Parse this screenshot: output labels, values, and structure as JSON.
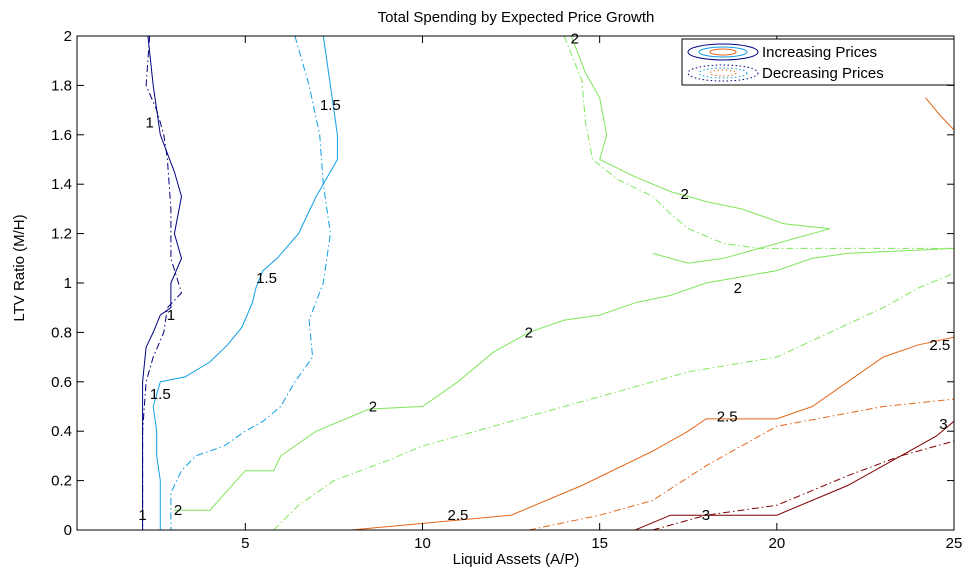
{
  "chart_data": {
    "type": "contour",
    "title": "Total Spending  by Expected Price Growth",
    "xlabel": "Liquid Assets (A/P)",
    "ylabel": "LTV Ratio (M/H)",
    "xlim": [
      0.25,
      25
    ],
    "ylim": [
      0,
      2
    ],
    "xticks": [
      5,
      10,
      15,
      20,
      25
    ],
    "yticks": [
      0,
      0.2,
      0.4,
      0.6,
      0.8,
      1,
      1.2,
      1.4,
      1.6,
      1.8,
      2
    ],
    "ytick_labels": [
      "0",
      "0.2",
      "0.4",
      "0.6",
      "0.8",
      "1",
      "1.2",
      "1.4",
      "1.6",
      "1.8",
      "2"
    ],
    "grid": false,
    "legend": {
      "placement": "top-right",
      "entries": [
        {
          "label": "Increasing Prices",
          "style": "solid"
        },
        {
          "label": "Decreasing Prices",
          "style": "dotted"
        }
      ]
    },
    "colors": {
      "1": "#00007f",
      "1.5": "#0f9ee6",
      "2": "#7fe65a",
      "2.5": "#e6661a",
      "3": "#7f0000"
    },
    "series": [
      {
        "level": "1",
        "style": "solid",
        "points": [
          [
            2.25,
            2
          ],
          [
            2.4,
            1.8
          ],
          [
            2.6,
            1.6
          ],
          [
            3.0,
            1.45
          ],
          [
            3.2,
            1.35
          ],
          [
            3.0,
            1.2
          ],
          [
            3.2,
            1.1
          ],
          [
            2.9,
            1.0
          ],
          [
            2.9,
            0.9
          ],
          [
            2.6,
            0.87
          ],
          [
            2.4,
            0.8
          ],
          [
            2.2,
            0.74
          ],
          [
            2.1,
            0.6
          ],
          [
            2.1,
            0.4
          ],
          [
            2.1,
            0.2
          ],
          [
            2.1,
            0
          ]
        ]
      },
      {
        "level": "1",
        "style": "dashdot",
        "points": [
          [
            2.3,
            2
          ],
          [
            2.2,
            1.8
          ],
          [
            2.5,
            1.7
          ],
          [
            2.7,
            1.6
          ],
          [
            2.8,
            1.5
          ],
          [
            2.9,
            1.3
          ],
          [
            2.9,
            1.1
          ],
          [
            3.2,
            0.96
          ],
          [
            2.8,
            0.9
          ],
          [
            2.7,
            0.8
          ],
          [
            2.4,
            0.7
          ],
          [
            2.2,
            0.6
          ],
          [
            2.1,
            0.4
          ],
          [
            2.1,
            0.2
          ],
          [
            2.1,
            0
          ]
        ]
      },
      {
        "level": "1.5",
        "style": "solid",
        "points": [
          [
            7.2,
            2
          ],
          [
            7.4,
            1.8
          ],
          [
            7.6,
            1.6
          ],
          [
            7.6,
            1.5
          ],
          [
            7.0,
            1.35
          ],
          [
            6.5,
            1.2
          ],
          [
            5.9,
            1.1
          ],
          [
            5.5,
            1.05
          ],
          [
            5.3,
            0.98
          ],
          [
            5.2,
            0.92
          ],
          [
            4.9,
            0.82
          ],
          [
            4.5,
            0.75
          ],
          [
            4.0,
            0.68
          ],
          [
            3.3,
            0.62
          ],
          [
            2.6,
            0.6
          ],
          [
            2.4,
            0.5
          ],
          [
            2.5,
            0.4
          ],
          [
            2.5,
            0.3
          ],
          [
            2.6,
            0.2
          ],
          [
            2.6,
            0
          ]
        ]
      },
      {
        "level": "1.5",
        "style": "dashdot",
        "points": [
          [
            6.4,
            2
          ],
          [
            6.8,
            1.8
          ],
          [
            7.1,
            1.6
          ],
          [
            7.2,
            1.4
          ],
          [
            7.4,
            1.2
          ],
          [
            7.2,
            1.0
          ],
          [
            6.8,
            0.85
          ],
          [
            6.9,
            0.7
          ],
          [
            6.4,
            0.6
          ],
          [
            6.0,
            0.5
          ],
          [
            5.5,
            0.44
          ],
          [
            5.0,
            0.4
          ],
          [
            4.4,
            0.34
          ],
          [
            3.6,
            0.3
          ],
          [
            3.2,
            0.24
          ],
          [
            2.9,
            0.15
          ],
          [
            2.9,
            0
          ]
        ]
      },
      {
        "level": "2",
        "style": "solid",
        "points": [
          [
            3.0,
            0.08
          ],
          [
            4.0,
            0.08
          ],
          [
            5.0,
            0.24
          ],
          [
            5.8,
            0.24
          ],
          [
            6.0,
            0.3
          ],
          [
            7.0,
            0.4
          ],
          [
            8.5,
            0.49
          ],
          [
            10.0,
            0.5
          ],
          [
            11.0,
            0.6
          ],
          [
            12.0,
            0.72
          ],
          [
            13.0,
            0.8
          ],
          [
            14.0,
            0.85
          ],
          [
            15.0,
            0.87
          ],
          [
            16.0,
            0.92
          ],
          [
            17.0,
            0.95
          ],
          [
            18.0,
            1.0
          ],
          [
            20.0,
            1.05
          ],
          [
            21.0,
            1.1
          ],
          [
            22.0,
            1.12
          ],
          [
            25.0,
            1.14
          ]
        ]
      },
      {
        "level": "2",
        "style": "dashdot",
        "points": [
          [
            5.8,
            0.0
          ],
          [
            6.5,
            0.1
          ],
          [
            7.5,
            0.2
          ],
          [
            9.0,
            0.28
          ],
          [
            10.0,
            0.34
          ],
          [
            12.0,
            0.42
          ],
          [
            13.5,
            0.48
          ],
          [
            15.5,
            0.56
          ],
          [
            17.5,
            0.64
          ],
          [
            20.0,
            0.7
          ],
          [
            21.5,
            0.8
          ],
          [
            23.0,
            0.9
          ],
          [
            24.0,
            0.98
          ],
          [
            25.0,
            1.04
          ]
        ]
      },
      {
        "level": "2",
        "style": "solid",
        "points": [
          [
            14.2,
            2
          ],
          [
            14.6,
            1.85
          ],
          [
            15.0,
            1.75
          ],
          [
            15.2,
            1.6
          ],
          [
            15.0,
            1.5
          ],
          [
            16.0,
            1.43
          ],
          [
            17.0,
            1.37
          ],
          [
            18.0,
            1.33
          ],
          [
            19.0,
            1.3
          ],
          [
            20.2,
            1.24
          ],
          [
            21.5,
            1.22
          ],
          [
            20.5,
            1.18
          ],
          [
            19.5,
            1.14
          ],
          [
            18.5,
            1.1
          ],
          [
            17.5,
            1.08
          ],
          [
            16.5,
            1.12
          ]
        ]
      },
      {
        "level": "2",
        "style": "dashdot",
        "points": [
          [
            14.0,
            2
          ],
          [
            14.5,
            1.82
          ],
          [
            14.6,
            1.65
          ],
          [
            14.8,
            1.5
          ],
          [
            15.5,
            1.42
          ],
          [
            16.5,
            1.35
          ],
          [
            17.0,
            1.28
          ],
          [
            17.5,
            1.22
          ],
          [
            18.5,
            1.16
          ],
          [
            19.5,
            1.14
          ],
          [
            21.0,
            1.14
          ],
          [
            23.0,
            1.14
          ],
          [
            25.0,
            1.14
          ]
        ]
      },
      {
        "level": "2.5",
        "style": "solid",
        "points": [
          [
            8.0,
            0
          ],
          [
            12.5,
            0.06
          ],
          [
            14.5,
            0.18
          ],
          [
            16.5,
            0.32
          ],
          [
            17.5,
            0.4
          ],
          [
            18.0,
            0.45
          ],
          [
            20.0,
            0.45
          ],
          [
            21.0,
            0.5
          ],
          [
            22.0,
            0.6
          ],
          [
            23.0,
            0.7
          ],
          [
            24.0,
            0.75
          ],
          [
            25.0,
            0.78
          ]
        ]
      },
      {
        "level": "2.5",
        "style": "dashdot",
        "points": [
          [
            13.0,
            0
          ],
          [
            15.0,
            0.06
          ],
          [
            16.5,
            0.12
          ],
          [
            18.0,
            0.26
          ],
          [
            19.0,
            0.34
          ],
          [
            20.0,
            0.42
          ],
          [
            21.5,
            0.46
          ],
          [
            23.0,
            0.5
          ],
          [
            25.0,
            0.53
          ]
        ]
      },
      {
        "level": "2.5",
        "style": "dashdot",
        "points": [
          [
            23.5,
            1.85
          ],
          [
            24.2,
            1.9
          ],
          [
            25.0,
            1.98
          ]
        ]
      },
      {
        "level": "2.5",
        "style": "solid",
        "points": [
          [
            24.2,
            1.75
          ],
          [
            24.6,
            1.68
          ],
          [
            25.0,
            1.62
          ]
        ]
      },
      {
        "level": "3",
        "style": "solid",
        "points": [
          [
            16.0,
            0
          ],
          [
            17.0,
            0.06
          ],
          [
            20.0,
            0.06
          ],
          [
            22.0,
            0.18
          ],
          [
            23.5,
            0.3
          ],
          [
            24.5,
            0.38
          ],
          [
            25.0,
            0.44
          ]
        ]
      },
      {
        "level": "3",
        "style": "dashdot",
        "points": [
          [
            16.5,
            0
          ],
          [
            18.0,
            0.06
          ],
          [
            20.0,
            0.1
          ],
          [
            22.0,
            0.22
          ],
          [
            23.5,
            0.3
          ],
          [
            24.5,
            0.34
          ],
          [
            25.0,
            0.36
          ]
        ]
      }
    ],
    "contour_labels": [
      {
        "text": "1",
        "x": 2.3,
        "y": 1.65
      },
      {
        "text": "1",
        "x": 2.9,
        "y": 0.87
      },
      {
        "text": "1",
        "x": 2.1,
        "y": 0.06
      },
      {
        "text": "1.5",
        "x": 7.4,
        "y": 1.72
      },
      {
        "text": "1.5",
        "x": 5.6,
        "y": 1.02
      },
      {
        "text": "1.5",
        "x": 2.6,
        "y": 0.55
      },
      {
        "text": "2",
        "x": 14.3,
        "y": 1.99
      },
      {
        "text": "2",
        "x": 17.4,
        "y": 1.36
      },
      {
        "text": "2",
        "x": 18.9,
        "y": 0.98
      },
      {
        "text": "2",
        "x": 13.0,
        "y": 0.8
      },
      {
        "text": "2",
        "x": 8.6,
        "y": 0.5
      },
      {
        "text": "2",
        "x": 3.1,
        "y": 0.08
      },
      {
        "text": "2.5",
        "x": 11.0,
        "y": 0.06
      },
      {
        "text": "2.5",
        "x": 18.6,
        "y": 0.46
      },
      {
        "text": "2.5",
        "x": 24.6,
        "y": 0.75
      },
      {
        "text": "3",
        "x": 18.0,
        "y": 0.06
      },
      {
        "text": "3",
        "x": 24.7,
        "y": 0.43
      }
    ]
  }
}
